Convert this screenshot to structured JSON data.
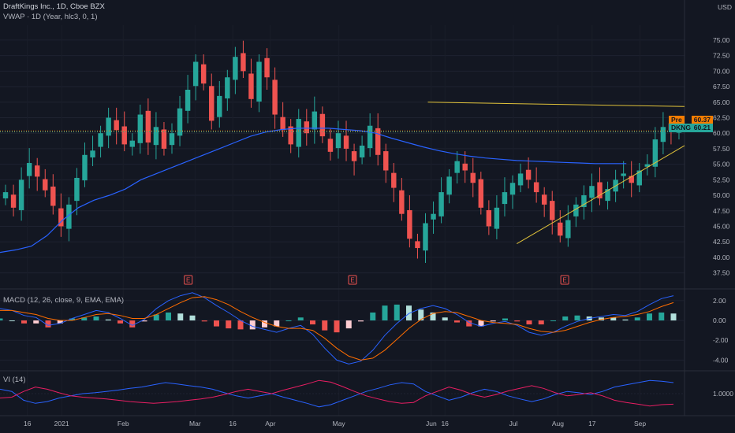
{
  "header": {
    "symbol_line": "DraftKings Inc., 1D, Cboe BZX",
    "vwap_line": "VWAP · 1D (Year, hlc3, 0, 1)",
    "currency": "USD"
  },
  "panes": {
    "macd_label": "MACD (12, 26, close, 9, EMA, EMA)",
    "vi_label": "VI (14)"
  },
  "price_tags": {
    "pre_label": "Pre",
    "pre_value": "60.37",
    "last_label": "DKNG",
    "last_value": "60.21"
  },
  "colors": {
    "background": "#131722",
    "up": "#26a69a",
    "down": "#ef5350",
    "vwap": "#2962ff",
    "trendline": "#e0c23a",
    "pre": "#f57c00",
    "macd_line": "#2962ff",
    "signal_line": "#ff6d00",
    "vi_plus": "#2962ff",
    "vi_minus": "#e91e63"
  },
  "events": [
    "E",
    "E",
    "E"
  ],
  "chart_data": [
    {
      "type": "candlestick",
      "title": "DraftKings Inc., 1D, Cboe BZX",
      "x_tick_labels": [
        "16",
        "2021",
        "Feb",
        "Mar",
        "16",
        "Apr",
        "May",
        "Jun",
        "16",
        "Jul",
        "Aug",
        "17",
        "Sep"
      ],
      "y_tick_labels": [
        "37.50",
        "40.00",
        "42.50",
        "45.00",
        "47.50",
        "50.00",
        "52.50",
        "55.00",
        "57.50",
        "60.00",
        "62.50",
        "65.00",
        "67.50",
        "70.00",
        "72.50",
        "75.00"
      ],
      "ylim": [
        35.8,
        77.4
      ],
      "close_series": [
        50.5,
        48.0,
        52.5,
        55.2,
        53.0,
        50.8,
        48.3,
        45.0,
        48.5,
        52.8,
        56.5,
        57.2,
        60.0,
        62.5,
        60.5,
        58.2,
        58.8,
        63.0,
        58.5,
        61.0,
        57.5,
        60.0,
        64.0,
        67.0,
        71.5,
        68.0,
        62.0,
        66.0,
        69.0,
        72.3,
        70.0,
        65.5,
        71.5,
        69.0,
        63.0,
        60.5,
        58.2,
        62.3,
        60.0,
        63.5,
        59.5,
        57.0,
        60.0,
        57.5,
        55.5,
        58.0,
        61.2,
        56.5,
        54.0,
        51.2,
        47.0,
        43.0,
        41.5,
        45.5,
        47.0,
        50.5,
        53.0,
        55.5,
        54.0,
        52.0,
        48.0,
        45.0,
        48.0,
        50.5,
        52.0,
        53.5,
        52.5,
        50.5,
        48.5,
        46.0,
        43.5,
        46.0,
        48.5,
        50.0,
        51.5,
        49.5,
        51.0,
        52.5,
        53.5,
        52.0,
        54.0,
        55.0,
        59.0,
        61.0,
        60.5,
        60.2
      ],
      "vwap_series": [
        40.8,
        41.2,
        41.8,
        43.5,
        46.0,
        48.0,
        49.2,
        50.0,
        51.0,
        52.5,
        53.5,
        54.5,
        55.5,
        56.5,
        57.5,
        58.5,
        59.5,
        60.2,
        60.6,
        60.8,
        60.8,
        60.8,
        60.6,
        60.4,
        60.0,
        59.2,
        58.5,
        57.8,
        57.2,
        56.7,
        56.3,
        56.0,
        55.8,
        55.6,
        55.5,
        55.4,
        55.3,
        55.2,
        55.1,
        55.1,
        55.1
      ],
      "trendlines": [
        {
          "start": [
            62.5,
            65.0
          ],
          "end": [
            100,
            64.3
          ]
        },
        {
          "start": [
            75.5,
            42.2
          ],
          "end": [
            100,
            58.0
          ]
        }
      ],
      "reference_levels": [
        60.37,
        60.21
      ]
    },
    {
      "type": "line",
      "title": "MACD (12, 26, close, 9, EMA, EMA)",
      "y_tick_labels": [
        "2.00",
        "0.00",
        "-2.00",
        "-4.00"
      ],
      "ylim": [
        -5.0,
        3.1
      ],
      "series": [
        {
          "values": [
            1.2,
            1.0,
            0.5,
            0.3,
            -0.5,
            -0.3,
            0.2,
            0.6,
            1.0,
            0.8,
            0.2,
            -0.5,
            0.1,
            1.2,
            2.0,
            2.5,
            2.8,
            2.3,
            1.5,
            0.8,
            0.0,
            -0.6,
            -0.9,
            -1.2,
            -0.8,
            -0.5,
            -1.4,
            -2.8,
            -4.0,
            -4.4,
            -4.1,
            -3.0,
            -1.5,
            -0.3,
            0.7,
            1.2,
            1.5,
            1.2,
            0.6,
            -0.2,
            -0.6,
            -0.3,
            -0.1,
            -0.5,
            -1.2,
            -1.5,
            -1.2,
            -0.6,
            -0.1,
            0.2,
            0.4,
            0.6,
            0.5,
            0.9,
            1.6,
            2.2,
            2.5
          ]
        },
        {
          "values": [
            1.0,
            1.0,
            0.8,
            0.6,
            0.2,
            0.0,
            0.0,
            0.3,
            0.6,
            0.7,
            0.5,
            0.2,
            0.2,
            0.6,
            1.2,
            1.8,
            2.3,
            2.4,
            2.1,
            1.6,
            0.9,
            0.3,
            -0.2,
            -0.6,
            -0.8,
            -0.8,
            -1.0,
            -1.8,
            -2.8,
            -3.6,
            -4.0,
            -3.8,
            -3.0,
            -1.9,
            -0.8,
            0.1,
            0.7,
            0.9,
            0.8,
            0.4,
            0.0,
            -0.2,
            -0.3,
            -0.4,
            -0.8,
            -1.1,
            -1.2,
            -1.0,
            -0.6,
            -0.2,
            0.1,
            0.3,
            0.4,
            0.6,
            0.9,
            1.4,
            1.8
          ]
        }
      ]
    },
    {
      "type": "line",
      "title": "VI (14)",
      "y_tick_labels": [
        "1.0000"
      ],
      "ylim": [
        0.5,
        1.5
      ],
      "series": [
        {
          "values": [
            1.1,
            1.05,
            0.85,
            0.78,
            0.82,
            0.9,
            0.95,
            1.0,
            1.02,
            1.05,
            1.08,
            1.12,
            1.15,
            1.2,
            1.25,
            1.22,
            1.18,
            1.15,
            1.1,
            1.02,
            0.95,
            0.9,
            0.95,
            1.0,
            0.92,
            0.85,
            0.78,
            0.7,
            0.75,
            0.85,
            0.95,
            1.05,
            1.12,
            1.2,
            1.25,
            1.22,
            1.05,
            0.95,
            0.85,
            0.92,
            1.02,
            1.1,
            1.05,
            0.95,
            0.88,
            0.82,
            0.88,
            0.98,
            1.05,
            1.02,
            0.98,
            1.05,
            1.15,
            1.2,
            1.25,
            1.3,
            1.28,
            1.25
          ]
        },
        {
          "values": [
            0.9,
            0.92,
            1.05,
            1.15,
            1.1,
            1.02,
            0.95,
            0.92,
            0.9,
            0.88,
            0.85,
            0.82,
            0.8,
            0.78,
            0.8,
            0.82,
            0.85,
            0.88,
            0.92,
            0.98,
            1.05,
            1.1,
            1.05,
            1.0,
            1.08,
            1.15,
            1.22,
            1.3,
            1.26,
            1.16,
            1.05,
            0.95,
            0.88,
            0.82,
            0.78,
            0.8,
            0.95,
            1.05,
            1.15,
            1.08,
            0.98,
            0.92,
            0.98,
            1.06,
            1.12,
            1.18,
            1.12,
            1.02,
            0.95,
            0.98,
            1.02,
            0.95,
            0.85,
            0.8,
            0.76,
            0.72,
            0.75,
            0.76
          ]
        }
      ]
    }
  ]
}
